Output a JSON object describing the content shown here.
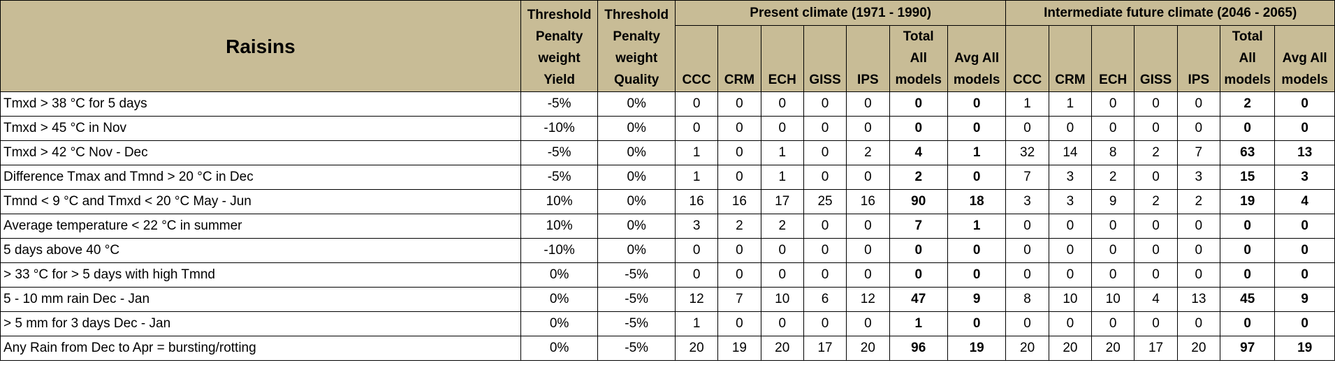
{
  "table": {
    "title": "Raisins",
    "yield_header": [
      "Threshold",
      "Penalty",
      "weight",
      "Yield"
    ],
    "quality_header": [
      "Threshold",
      "Penalty",
      "weight",
      "Quality"
    ],
    "groups": [
      {
        "title": "Present climate (1971 - 1990)"
      },
      {
        "title": "Intermediate future climate (2046 - 2065)"
      }
    ],
    "model_cols": [
      "CCC",
      "CRM",
      "ECH",
      "GISS",
      "IPS"
    ],
    "total_header": [
      "Total",
      "All",
      "models"
    ],
    "avg_header": [
      "Avg All",
      "models"
    ],
    "rows": [
      {
        "label": "Tmxd > 38 °C for 5 days",
        "yield": "-5%",
        "quality": "0%",
        "present": [
          "0",
          "0",
          "0",
          "0",
          "0"
        ],
        "present_total": "0",
        "present_avg": "0",
        "future": [
          "1",
          "1",
          "0",
          "0",
          "0"
        ],
        "future_total": "2",
        "future_avg": "0"
      },
      {
        "label": "Tmxd > 45 °C in Nov",
        "yield": "-10%",
        "quality": "0%",
        "present": [
          "0",
          "0",
          "0",
          "0",
          "0"
        ],
        "present_total": "0",
        "present_avg": "0",
        "future": [
          "0",
          "0",
          "0",
          "0",
          "0"
        ],
        "future_total": "0",
        "future_avg": "0"
      },
      {
        "label": "Tmxd > 42 °C Nov - Dec",
        "yield": "-5%",
        "quality": "0%",
        "present": [
          "1",
          "0",
          "1",
          "0",
          "2"
        ],
        "present_total": "4",
        "present_avg": "1",
        "future": [
          "32",
          "14",
          "8",
          "2",
          "7"
        ],
        "future_total": "63",
        "future_avg": "13"
      },
      {
        "label": "Difference Tmax and Tmnd > 20 °C in Dec",
        "yield": "-5%",
        "quality": "0%",
        "present": [
          "1",
          "0",
          "1",
          "0",
          "0"
        ],
        "present_total": "2",
        "present_avg": "0",
        "future": [
          "7",
          "3",
          "2",
          "0",
          "3"
        ],
        "future_total": "15",
        "future_avg": "3"
      },
      {
        "label": "Tmnd < 9 °C and Tmxd < 20 °C May - Jun",
        "yield": "10%",
        "quality": "0%",
        "present": [
          "16",
          "16",
          "17",
          "25",
          "16"
        ],
        "present_total": "90",
        "present_avg": "18",
        "future": [
          "3",
          "3",
          "9",
          "2",
          "2"
        ],
        "future_total": "19",
        "future_avg": "4"
      },
      {
        "label": "Average temperature < 22 °C in summer",
        "yield": "10%",
        "quality": "0%",
        "present": [
          "3",
          "2",
          "2",
          "0",
          "0"
        ],
        "present_total": "7",
        "present_avg": "1",
        "future": [
          "0",
          "0",
          "0",
          "0",
          "0"
        ],
        "future_total": "0",
        "future_avg": "0"
      },
      {
        "label": "5 days above 40 °C",
        "yield": "-10%",
        "quality": "0%",
        "present": [
          "0",
          "0",
          "0",
          "0",
          "0"
        ],
        "present_total": "0",
        "present_avg": "0",
        "future": [
          "0",
          "0",
          "0",
          "0",
          "0"
        ],
        "future_total": "0",
        "future_avg": "0"
      },
      {
        "label": "> 33 °C for > 5 days with high Tmnd",
        "yield": "0%",
        "quality": "-5%",
        "present": [
          "0",
          "0",
          "0",
          "0",
          "0"
        ],
        "present_total": "0",
        "present_avg": "0",
        "future": [
          "0",
          "0",
          "0",
          "0",
          "0"
        ],
        "future_total": "0",
        "future_avg": "0"
      },
      {
        "label": "5 - 10 mm rain Dec - Jan",
        "yield": "0%",
        "quality": "-5%",
        "present": [
          "12",
          "7",
          "10",
          "6",
          "12"
        ],
        "present_total": "47",
        "present_avg": "9",
        "future": [
          "8",
          "10",
          "10",
          "4",
          "13"
        ],
        "future_total": "45",
        "future_avg": "9"
      },
      {
        "label": ">  5 mm for 3 days Dec - Jan",
        "yield": "0%",
        "quality": "-5%",
        "present": [
          "1",
          "0",
          "0",
          "0",
          "0"
        ],
        "present_total": "1",
        "present_avg": "0",
        "future": [
          "0",
          "0",
          "0",
          "0",
          "0"
        ],
        "future_total": "0",
        "future_avg": "0"
      },
      {
        "label": "Any Rain from Dec to Apr = bursting/rotting",
        "yield": "0%",
        "quality": "-5%",
        "present": [
          "20",
          "19",
          "20",
          "17",
          "20"
        ],
        "present_total": "96",
        "present_avg": "19",
        "future": [
          "20",
          "20",
          "20",
          "17",
          "20"
        ],
        "future_total": "97",
        "future_avg": "19"
      }
    ]
  }
}
